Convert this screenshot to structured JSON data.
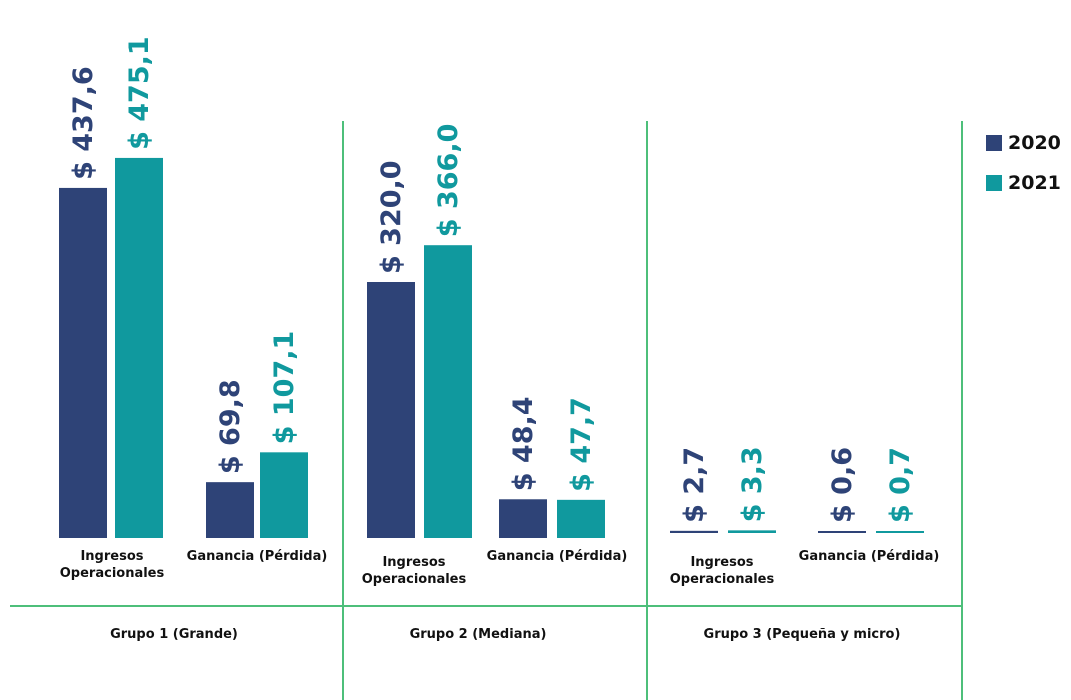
{
  "chart_data": {
    "type": "bar",
    "colors": {
      "2020": "#2e4377",
      "2021": "#10999e",
      "divider": "#4dbf7a"
    },
    "series": [
      {
        "name": "2020",
        "color": "#2e4377"
      },
      {
        "name": "2021",
        "color": "#10999e"
      }
    ],
    "groups": [
      {
        "name": "Grupo 1 (Grande)",
        "categories": [
          {
            "label_lines": [
              "Ingresos",
              "Operacionales"
            ],
            "values": [
              437.6,
              475.1
            ],
            "labels": [
              "$ 437,6",
              "$ 475,1"
            ]
          },
          {
            "label_lines": [
              "Ganancia (Pérdida)"
            ],
            "values": [
              69.8,
              107.1
            ],
            "labels": [
              "$ 69,8",
              "$ 107,1"
            ]
          }
        ]
      },
      {
        "name": "Grupo 2 (Mediana)",
        "categories": [
          {
            "label_lines": [
              "Ingresos",
              "Operacionales"
            ],
            "values": [
              320.0,
              366.0
            ],
            "labels": [
              "$ 320,0",
              "$ 366,0"
            ]
          },
          {
            "label_lines": [
              "Ganancia (Pérdida)"
            ],
            "values": [
              48.4,
              47.7
            ],
            "labels": [
              "$ 48,4",
              "$ 47,7"
            ]
          }
        ]
      },
      {
        "name": "Grupo 3 (Pequeña y micro)",
        "categories": [
          {
            "label_lines": [
              "Ingresos",
              "Operacionales"
            ],
            "values": [
              2.7,
              3.3
            ],
            "labels": [
              "$ 2,7",
              "$ 3,3"
            ]
          },
          {
            "label_lines": [
              "Ganancia (Pérdida)"
            ],
            "values": [
              0.6,
              0.7
            ],
            "labels": [
              "$ 0,6",
              "$ 0,7"
            ]
          }
        ]
      }
    ],
    "legend_position": "top-right",
    "grid": false
  }
}
